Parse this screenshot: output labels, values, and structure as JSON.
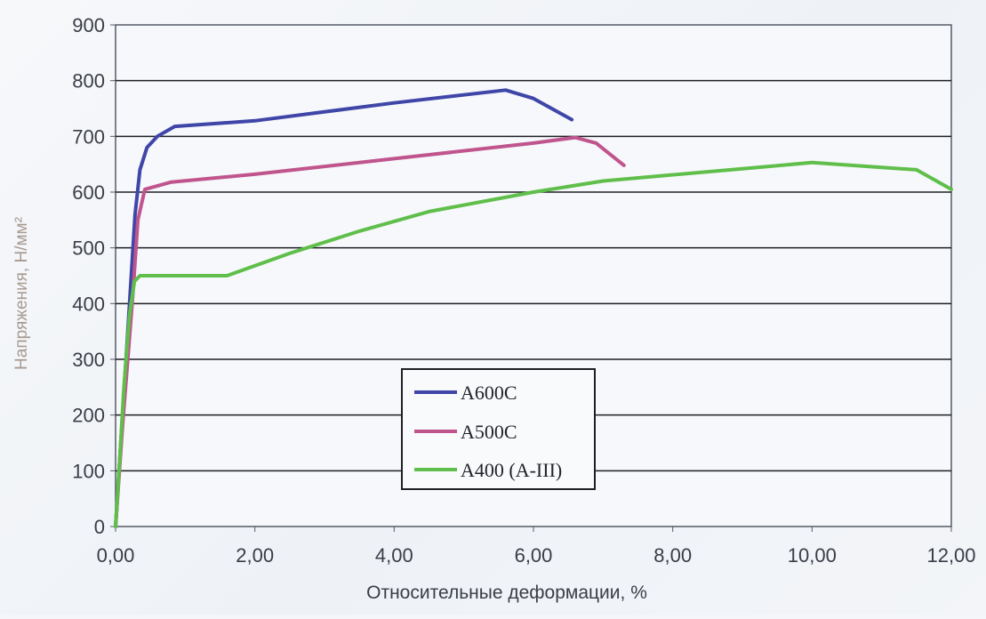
{
  "chart_data": {
    "type": "line",
    "title": "",
    "xlabel": "Относительные деформации, %",
    "ylabel": "Напряжения, Н/мм²",
    "xlim": [
      0,
      12
    ],
    "ylim": [
      0,
      900
    ],
    "x_ticks": [
      "0,00",
      "2,00",
      "4,00",
      "6,00",
      "8,00",
      "10,00",
      "12,00"
    ],
    "y_ticks": [
      "0",
      "100",
      "200",
      "300",
      "400",
      "500",
      "600",
      "700",
      "800",
      "900"
    ],
    "grid": "horizontal",
    "legend_position": "center-bottom",
    "series": [
      {
        "name": "A600C",
        "color": "#3f46a8",
        "points": [
          [
            0,
            0
          ],
          [
            0.1,
            200
          ],
          [
            0.2,
            400
          ],
          [
            0.28,
            560
          ],
          [
            0.35,
            640
          ],
          [
            0.45,
            680
          ],
          [
            0.6,
            700
          ],
          [
            0.85,
            718
          ],
          [
            2.0,
            728
          ],
          [
            4.0,
            760
          ],
          [
            5.6,
            783
          ],
          [
            6.0,
            768
          ],
          [
            6.55,
            730
          ]
        ]
      },
      {
        "name": "A500C",
        "color": "#c0558e",
        "points": [
          [
            0,
            0
          ],
          [
            0.1,
            180
          ],
          [
            0.2,
            340
          ],
          [
            0.25,
            420
          ],
          [
            0.32,
            550
          ],
          [
            0.42,
            605
          ],
          [
            0.8,
            618
          ],
          [
            2.0,
            632
          ],
          [
            4.0,
            660
          ],
          [
            6.0,
            688
          ],
          [
            6.6,
            698
          ],
          [
            6.9,
            688
          ],
          [
            7.3,
            648
          ]
        ]
      },
      {
        "name": "A400 (A-III)",
        "color": "#5fbf4a",
        "points": [
          [
            0,
            0
          ],
          [
            0.05,
            100
          ],
          [
            0.12,
            250
          ],
          [
            0.2,
            380
          ],
          [
            0.27,
            440
          ],
          [
            0.35,
            450
          ],
          [
            1.6,
            450
          ],
          [
            2.5,
            490
          ],
          [
            3.5,
            530
          ],
          [
            4.5,
            565
          ],
          [
            6.0,
            600
          ],
          [
            7.0,
            620
          ],
          [
            9.0,
            642
          ],
          [
            10.0,
            653
          ],
          [
            11.5,
            640
          ],
          [
            12.0,
            605
          ]
        ]
      }
    ]
  }
}
